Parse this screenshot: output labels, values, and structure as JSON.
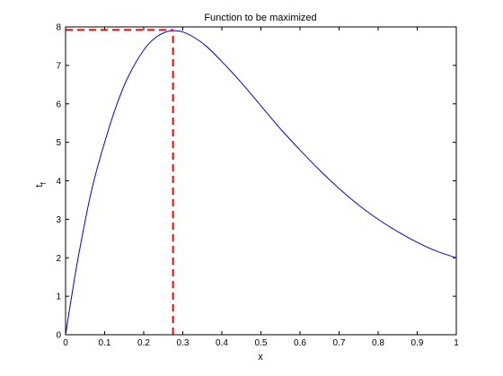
{
  "chart_data": {
    "type": "line",
    "title": "Function to be maximized",
    "xlabel": "x",
    "ylabel": "t",
    "ylabel_subscript": "f",
    "xlim": [
      0,
      1
    ],
    "ylim": [
      0,
      8
    ],
    "xticks": [
      "0",
      "0.1",
      "0.2",
      "0.3",
      "0.4",
      "0.5",
      "0.6",
      "0.7",
      "0.8",
      "0.9",
      "1"
    ],
    "yticks": [
      "0",
      "1",
      "2",
      "3",
      "4",
      "5",
      "6",
      "7",
      "8"
    ],
    "grid": false,
    "series": [
      {
        "color": "#0000ff",
        "x": [
          0,
          0.01,
          0.02,
          0.03,
          0.05,
          0.07,
          0.1,
          0.13,
          0.16,
          0.2,
          0.23,
          0.26,
          0.28,
          0.3,
          0.33,
          0.36,
          0.4,
          0.45,
          0.5,
          0.55,
          0.6,
          0.65,
          0.7,
          0.75,
          0.8,
          0.85,
          0.9,
          0.95,
          1.0
        ],
        "y": [
          0,
          0.65,
          1.28,
          1.88,
          2.95,
          3.9,
          5.0,
          5.95,
          6.7,
          7.4,
          7.72,
          7.88,
          7.9,
          7.87,
          7.72,
          7.5,
          7.1,
          6.55,
          5.95,
          5.35,
          4.8,
          4.28,
          3.8,
          3.37,
          3.0,
          2.68,
          2.4,
          2.17,
          2.0
        ]
      }
    ],
    "max_marker": {
      "x": 0.275,
      "y": 7.92,
      "color": "#ff0000",
      "style": "dashed"
    }
  }
}
